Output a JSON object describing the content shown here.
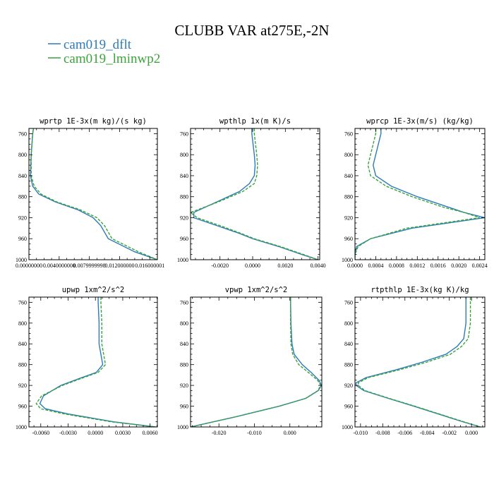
{
  "figure": {
    "title": "CLUBB VAR at275E,-2N",
    "legend": [
      {
        "name": "cam019_dflt",
        "color": "#2b7bba",
        "dash": "solid"
      },
      {
        "name": "cam019_lminwp2",
        "color": "#3aa43a",
        "dash": "dashed"
      }
    ]
  },
  "chart_data": [
    {
      "type": "line",
      "title": "wprtp  1E-3x(m kg)/(s kg)",
      "xlim": [
        0.0,
        0.017
      ],
      "ylim": [
        1000,
        750
      ],
      "xticks": [
        0.0,
        0.004,
        0.008,
        0.012,
        0.016
      ],
      "xtick_labels": [
        "0.00000000",
        "0.0040000000",
        "0.0079999998",
        "0.012000000",
        "0.016000001"
      ],
      "yticks": [
        760,
        800,
        840,
        880,
        920,
        960,
        1000
      ],
      "y": [
        750,
        760,
        800,
        840,
        860,
        875,
        890,
        905,
        920,
        935,
        960,
        985,
        1000
      ],
      "series": [
        {
          "name": "cam019_dflt",
          "values": [
            0.0006,
            0.0005,
            0.0003,
            0.0002,
            0.0005,
            0.0013,
            0.0035,
            0.0065,
            0.0085,
            0.0095,
            0.0105,
            0.014,
            0.017
          ]
        },
        {
          "name": "cam019_lminwp2",
          "values": [
            0.0006,
            0.0005,
            0.0003,
            0.0003,
            0.0007,
            0.0016,
            0.0037,
            0.0068,
            0.009,
            0.01,
            0.011,
            0.0145,
            0.017
          ]
        }
      ]
    },
    {
      "type": "line",
      "title": "wpthlp  1x(m K)/s",
      "xlim": [
        -0.0038,
        0.0041
      ],
      "ylim": [
        1000,
        750
      ],
      "xticks": [
        -0.002,
        0.0,
        0.002,
        0.004
      ],
      "xtick_labels": [
        "-0.0020",
        "0.0000",
        "0.0020",
        "0.0040"
      ],
      "yticks": [
        760,
        800,
        840,
        880,
        920,
        960,
        1000
      ],
      "y": [
        750,
        760,
        800,
        820,
        840,
        855,
        870,
        890,
        910,
        920,
        935,
        950,
        960,
        975,
        990,
        1000
      ],
      "series": [
        {
          "name": "cam019_dflt",
          "values": [
            -5e-05,
            -5e-05,
            0.0001,
            0.00015,
            0.0001,
            -0.0002,
            -0.0008,
            -0.0022,
            -0.0036,
            -0.0036,
            -0.0022,
            -0.0008,
            0.0,
            0.0016,
            0.003,
            0.004
          ]
        },
        {
          "name": "cam019_lminwp2",
          "values": [
            0.0001,
            0.0001,
            0.00025,
            0.0003,
            0.00025,
            0.0001,
            -0.0006,
            -0.0021,
            -0.0038,
            -0.0034,
            -0.002,
            -0.0007,
            0.0001,
            0.0017,
            0.0031,
            0.004
          ]
        }
      ]
    },
    {
      "type": "line",
      "title": "wprcp  1E-3x(m/s) (kg/kg)",
      "xlim": [
        0.0,
        0.0025
      ],
      "ylim": [
        1000,
        750
      ],
      "xticks": [
        0.0,
        0.0004,
        0.0008,
        0.0012,
        0.0016,
        0.002,
        0.0024
      ],
      "xtick_labels": [
        "0.0000",
        "0.0004",
        "0.0008",
        "0.0012",
        "0.0016",
        "0.0020",
        "0.0024"
      ],
      "yticks": [
        760,
        800,
        840,
        880,
        920,
        960,
        1000
      ],
      "y": [
        750,
        760,
        800,
        820,
        840,
        860,
        880,
        900,
        910,
        920,
        930,
        940,
        960,
        975,
        990,
        1000
      ],
      "series": [
        {
          "name": "cam019_dflt",
          "values": [
            0.0005,
            0.0005,
            0.0004,
            0.00035,
            0.0004,
            0.0007,
            0.0012,
            0.0018,
            0.0021,
            0.0025,
            0.0018,
            0.0011,
            0.0003,
            3e-05,
            0.0,
            0.0
          ]
        },
        {
          "name": "cam019_lminwp2",
          "values": [
            0.0004,
            0.0004,
            0.0003,
            0.00025,
            0.0003,
            0.0006,
            0.0011,
            0.0017,
            0.0021,
            0.0024,
            0.0017,
            0.001,
            0.0003,
            6e-05,
            0.0,
            0.0
          ]
        }
      ]
    },
    {
      "type": "line",
      "title": "upwp  1xm^2/s^2",
      "xlim": [
        -0.0073,
        0.0068
      ],
      "ylim": [
        1000,
        750
      ],
      "xticks": [
        -0.006,
        -0.003,
        0.0,
        0.003,
        0.006
      ],
      "xtick_labels": [
        "-0.0060",
        "-0.0030",
        "0.0000",
        "0.0030",
        "0.0060"
      ],
      "yticks": [
        760,
        800,
        840,
        880,
        920,
        960,
        1000
      ],
      "y": [
        750,
        760,
        800,
        840,
        860,
        880,
        895,
        905,
        920,
        940,
        955,
        965,
        975,
        990,
        1000
      ],
      "series": [
        {
          "name": "cam019_dflt",
          "values": [
            0.0003,
            0.0003,
            0.0004,
            0.0004,
            0.0006,
            0.0008,
            0.0001,
            -0.0015,
            -0.0038,
            -0.0057,
            -0.0061,
            -0.0055,
            -0.003,
            0.002,
            0.0066
          ]
        },
        {
          "name": "cam019_lminwp2",
          "values": [
            0.0006,
            0.0006,
            0.0007,
            0.0007,
            0.0009,
            0.0011,
            0.0003,
            -0.0013,
            -0.0036,
            -0.0059,
            -0.0065,
            -0.006,
            -0.0034,
            0.0017,
            0.0066
          ]
        }
      ]
    },
    {
      "type": "line",
      "title": "vpwp  1xm^2/s^2",
      "xlim": [
        -0.028,
        0.009
      ],
      "ylim": [
        1000,
        750
      ],
      "xticks": [
        -0.02,
        -0.01,
        0.0
      ],
      "xtick_labels": [
        "-0.020",
        "-0.010",
        "0.000"
      ],
      "yticks": [
        760,
        800,
        840,
        880,
        920,
        960,
        1000
      ],
      "y": [
        750,
        760,
        800,
        840,
        860,
        880,
        895,
        910,
        920,
        930,
        945,
        960,
        980,
        1000
      ],
      "series": [
        {
          "name": "cam019_dflt",
          "values": [
            0.0002,
            0.0002,
            0.0003,
            0.0006,
            0.0012,
            0.0035,
            0.006,
            0.0082,
            0.0089,
            0.008,
            0.0045,
            -0.003,
            -0.015,
            -0.028
          ]
        },
        {
          "name": "cam019_lminwp2",
          "values": [
            0.0002,
            0.0002,
            0.0002,
            0.0003,
            0.0008,
            0.0025,
            0.0052,
            0.0078,
            0.0087,
            0.0079,
            0.0044,
            -0.003,
            -0.015,
            -0.028
          ]
        }
      ]
    },
    {
      "type": "line",
      "title": "rtpthlp  1E-3x(kg K)/kg",
      "xlim": [
        -0.0105,
        0.0012
      ],
      "ylim": [
        1000,
        750
      ],
      "xticks": [
        -0.01,
        -0.008,
        -0.006,
        -0.004,
        -0.002,
        0.0
      ],
      "xtick_labels": [
        "-0.010",
        "-0.008",
        "-0.006",
        "-0.004",
        "-0.002",
        "0.000"
      ],
      "yticks": [
        760,
        800,
        840,
        880,
        920,
        960,
        1000
      ],
      "y": [
        750,
        760,
        800,
        830,
        845,
        860,
        875,
        890,
        905,
        915,
        920,
        930,
        945,
        960,
        975,
        990,
        1000
      ],
      "series": [
        {
          "name": "cam019_dflt",
          "values": [
            -0.0005,
            -0.0005,
            -0.0005,
            -0.0007,
            -0.0013,
            -0.0023,
            -0.0044,
            -0.0068,
            -0.0095,
            -0.0104,
            -0.0104,
            -0.0097,
            -0.0075,
            -0.0052,
            -0.003,
            -0.0008,
            0.0008
          ]
        },
        {
          "name": "cam019_lminwp2",
          "values": [
            -0.0001,
            -0.0001,
            -0.0001,
            -0.0003,
            -0.0009,
            -0.0019,
            -0.004,
            -0.0065,
            -0.0093,
            -0.0102,
            -0.0102,
            -0.0096,
            -0.0074,
            -0.0051,
            -0.0029,
            -0.0007,
            0.0008
          ]
        }
      ]
    }
  ]
}
